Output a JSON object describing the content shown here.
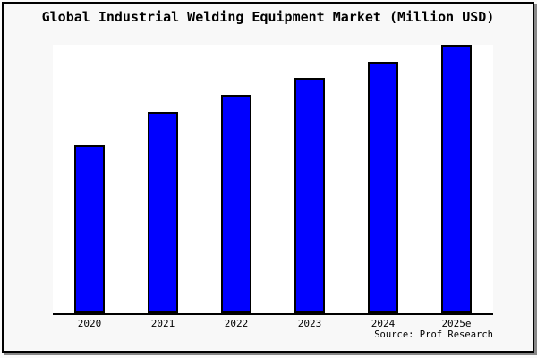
{
  "title": "Global Industrial Welding Equipment Market (Million USD)",
  "source_label": "Source: Prof Research",
  "colors": {
    "page_background": "#f8f8f8",
    "plot_background": "#ffffff",
    "frame_border": "#000000",
    "bar_fill": "#0000ff",
    "bar_border": "#000000",
    "axis_line": "#000000",
    "text": "#000000"
  },
  "chart_data": {
    "type": "bar",
    "title": "Global Industrial Welding Equipment Market (Million USD)",
    "categories": [
      "2020",
      "2021",
      "2022",
      "2023",
      "2024",
      "2025e"
    ],
    "values": [
      188,
      225,
      244,
      263,
      281,
      300
    ],
    "values_unit": "relative bar height (px); y-axis has no visible scale",
    "values_normalized_pct_of_max": [
      62.7,
      75.0,
      81.3,
      87.7,
      93.7,
      100.0
    ],
    "xlabel": "",
    "ylabel": "",
    "ylim": [
      0,
      300
    ],
    "grid": false,
    "legend": false,
    "y_axis_labels_visible": false,
    "bar_color": "#0000ff",
    "bar_border_color": "#000000"
  }
}
